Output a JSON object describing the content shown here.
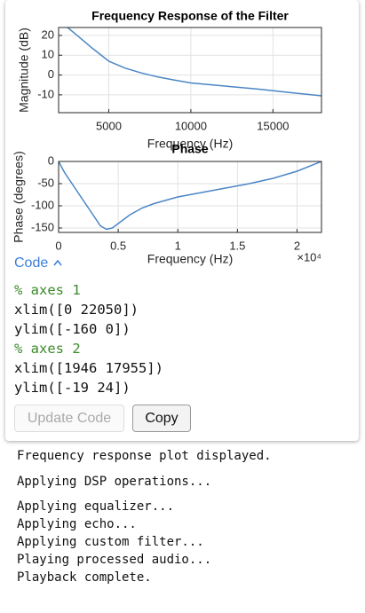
{
  "chart_data": [
    {
      "type": "line",
      "title": "Frequency Response of the Filter",
      "xlabel": "Frequency (Hz)",
      "ylabel": "Magnitude (dB)",
      "x": [
        1946,
        2500,
        3000,
        3500,
        4000,
        5000,
        6000,
        7000,
        8000,
        9000,
        10000,
        12000,
        14000,
        16000,
        17955
      ],
      "values": [
        28,
        24,
        20.5,
        17,
        13.5,
        7,
        3.5,
        1,
        -1,
        -2.5,
        -4,
        -5.5,
        -7,
        -8.8,
        -10.5
      ],
      "color": "#4a86c5",
      "xlim": [
        1946,
        17955
      ],
      "ylim": [
        -19,
        24
      ],
      "xticks": [
        5000,
        10000,
        15000
      ],
      "yticks": [
        -10,
        0,
        10,
        20
      ],
      "grid": true
    },
    {
      "type": "line",
      "title": "Phase",
      "xlabel": "Frequency (Hz)",
      "ylabel": "Phase (degrees)",
      "x_exponent": "×10⁴",
      "x": [
        0,
        500,
        1000,
        1500,
        2000,
        2500,
        3000,
        3500,
        4000,
        4500,
        5000,
        6000,
        7000,
        8000,
        10000,
        12000,
        14000,
        16000,
        18000,
        20000,
        22050
      ],
      "values": [
        0,
        -25,
        -45,
        -65,
        -85,
        -105,
        -125,
        -145,
        -153,
        -150,
        -140,
        -120,
        -105,
        -95,
        -80,
        -70,
        -60,
        -50,
        -38,
        -22,
        0
      ],
      "color": "#4a86c5",
      "xlim": [
        0,
        22050
      ],
      "ylim": [
        -160,
        0
      ],
      "xticks": [
        0,
        {
          "value": 5000,
          "label": "0.5"
        },
        {
          "value": 10000,
          "label": "1"
        },
        {
          "value": 15000,
          "label": "1.5"
        },
        {
          "value": 20000,
          "label": "2"
        }
      ],
      "yticks": [
        -150,
        -100,
        -50,
        0
      ],
      "grid": true
    }
  ],
  "code": {
    "toggle": "Code",
    "lines": [
      "% axes 1",
      "xlim([0 22050])",
      "ylim([-160 0])",
      "% axes 2",
      "xlim([1946 17955])",
      "ylim([-19 24])"
    ]
  },
  "buttons": {
    "update": "Update Code",
    "copy": "Copy"
  },
  "output": [
    "Frequency response plot displayed.",
    "Applying DSP operations...",
    "Applying equalizer...",
    "Applying echo...",
    "Applying custom filter...",
    "Playing processed audio...",
    "Playback complete."
  ]
}
